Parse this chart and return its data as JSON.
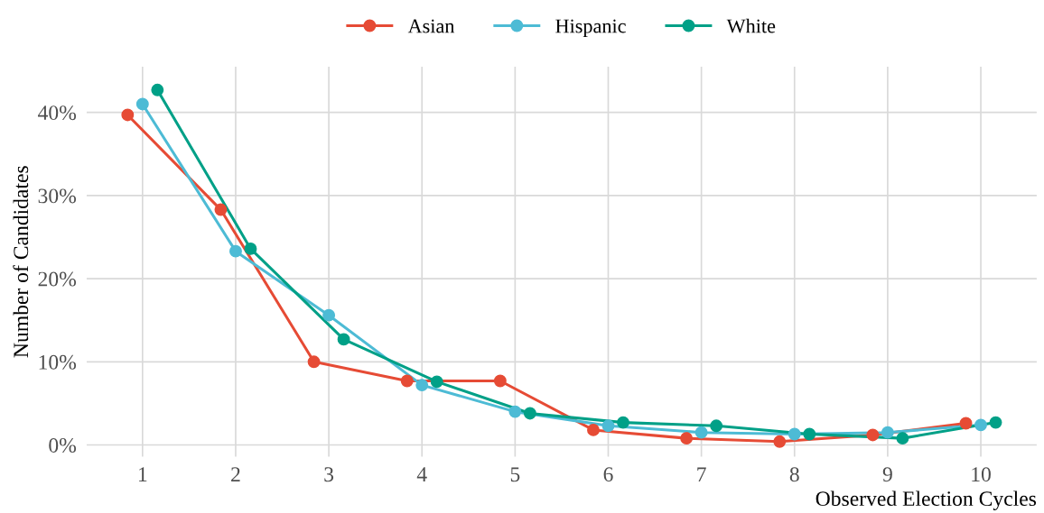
{
  "chart_data": {
    "type": "line",
    "xlabel": "Observed Election Cycles",
    "ylabel": "Number of Candidates",
    "series": [
      {
        "name": "Asian",
        "color": "#e64b35",
        "x": [
          0.84,
          1.84,
          2.84,
          3.84,
          4.84,
          5.84,
          6.84,
          7.84,
          8.84,
          9.84
        ],
        "values": [
          39.7,
          28.3,
          10.0,
          7.7,
          7.7,
          1.8,
          0.8,
          0.4,
          1.2,
          2.6
        ]
      },
      {
        "name": "Hispanic",
        "color": "#4dbbd5",
        "x": [
          1,
          2,
          3,
          4,
          5,
          6,
          7,
          8,
          9,
          10
        ],
        "values": [
          41.0,
          23.3,
          15.6,
          7.2,
          4.0,
          2.3,
          1.5,
          1.3,
          1.5,
          2.4
        ]
      },
      {
        "name": "White",
        "color": "#00a087",
        "x": [
          1.16,
          2.16,
          3.16,
          4.16,
          5.16,
          6.16,
          7.16,
          8.16,
          9.16,
          10.16
        ],
        "values": [
          42.7,
          23.6,
          12.7,
          7.6,
          3.8,
          2.7,
          2.3,
          1.3,
          0.8,
          2.7
        ]
      }
    ],
    "xlim": [
      0.4,
      10.6
    ],
    "xticks": [
      1,
      2,
      3,
      4,
      5,
      6,
      7,
      8,
      9,
      10
    ],
    "ylim": [
      -1.4,
      45.5
    ],
    "yticks": [
      {
        "value": 0,
        "label": "0%"
      },
      {
        "value": 10,
        "label": "10%"
      },
      {
        "value": 20,
        "label": "20%"
      },
      {
        "value": 30,
        "label": "30%"
      },
      {
        "value": 40,
        "label": "40%"
      }
    ],
    "grid": true,
    "legend": "top",
    "marker": "circle",
    "line_style": "solid"
  }
}
